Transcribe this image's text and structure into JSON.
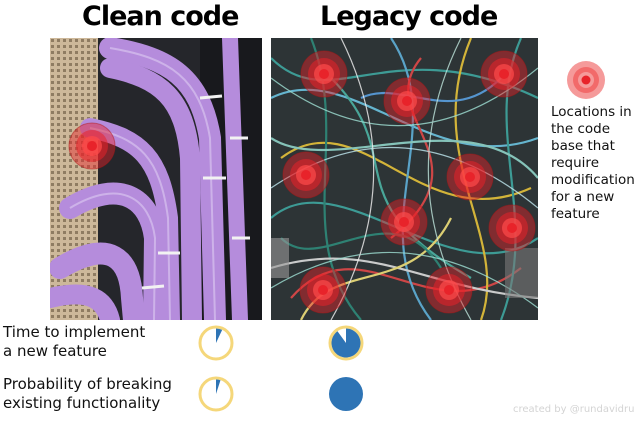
{
  "header": {
    "clean_title": "Clean code",
    "legacy_title": "Legacy code"
  },
  "legend": {
    "marker": "target-marker-icon",
    "text": "Locations in\nthe code\nbase that\nrequire\nmodification\nfor a new\nfeature"
  },
  "rows": [
    {
      "label": "Time to implement\na new feature",
      "clean_fraction": 0.07,
      "legacy_fraction": 0.9
    },
    {
      "label": "Probability of breaking\nexisting functionality",
      "clean_fraction": 0.05,
      "legacy_fraction": 1.0
    }
  ],
  "credit": "created by @rundavidrun",
  "colors": {
    "pie_fill": "#2e74b5",
    "pie_ring": "#f5d77a",
    "target_red": "#e8232a",
    "clean_cable": "#b28ad8",
    "background": "#ffffff"
  }
}
